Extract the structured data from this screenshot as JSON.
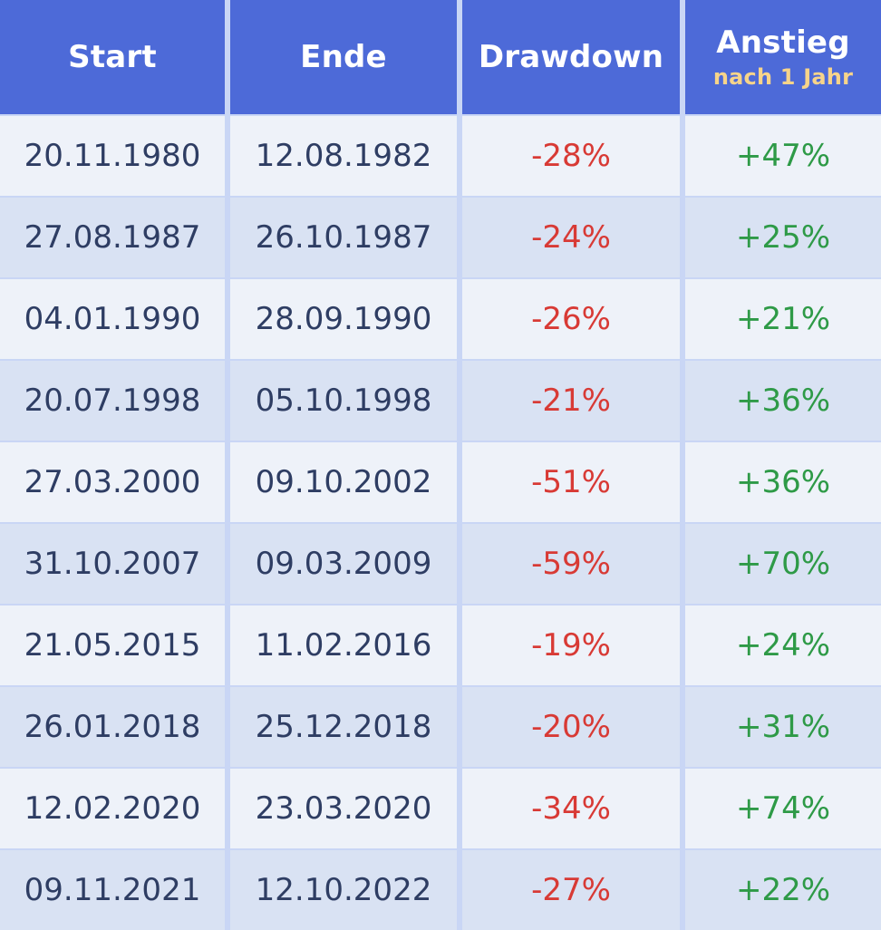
{
  "headers": {
    "start": "Start",
    "ende": "Ende",
    "drawdown": "Drawdown",
    "anstieg": "Anstieg",
    "anstieg_sub": "nach 1 Jahr"
  },
  "rows": [
    {
      "start": "20.11.1980",
      "ende": "12.08.1982",
      "drawdown": "-28%",
      "anstieg": "+47%"
    },
    {
      "start": "27.08.1987",
      "ende": "26.10.1987",
      "drawdown": "-24%",
      "anstieg": "+25%"
    },
    {
      "start": "04.01.1990",
      "ende": "28.09.1990",
      "drawdown": "-26%",
      "anstieg": "+21%"
    },
    {
      "start": "20.07.1998",
      "ende": "05.10.1998",
      "drawdown": "-21%",
      "anstieg": "+36%"
    },
    {
      "start": "27.03.2000",
      "ende": "09.10.2002",
      "drawdown": "-51%",
      "anstieg": "+36%"
    },
    {
      "start": "31.10.2007",
      "ende": "09.03.2009",
      "drawdown": "-59%",
      "anstieg": "+70%"
    },
    {
      "start": "21.05.2015",
      "ende": "11.02.2016",
      "drawdown": "-19%",
      "anstieg": "+24%"
    },
    {
      "start": "26.01.2018",
      "ende": "25.12.2018",
      "drawdown": "-20%",
      "anstieg": "+31%"
    },
    {
      "start": "12.02.2020",
      "ende": "23.03.2020",
      "drawdown": "-34%",
      "anstieg": "+74%"
    },
    {
      "start": "09.11.2021",
      "ende": "12.10.2022",
      "drawdown": "-27%",
      "anstieg": "+22%"
    }
  ],
  "colors": {
    "header_bg": "#4d6ad8",
    "header_text": "#ffffff",
    "header_sub_text": "#f7d48a",
    "row_odd_bg": "#eef2f9",
    "row_even_bg": "#d9e2f3",
    "text": "#2e3d63",
    "negative": "#d83a35",
    "positive": "#2e9a47"
  }
}
